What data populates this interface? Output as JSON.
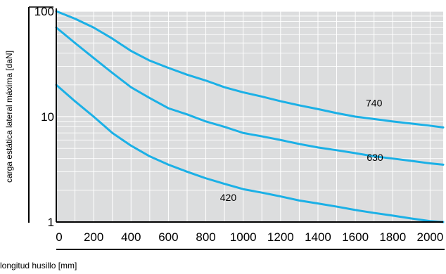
{
  "chart_data": {
    "type": "line",
    "title": "",
    "xlabel": "longitud husillo [mm]",
    "ylabel": "carga estática lateral máxima [daN]",
    "xlim": [
      0,
      2070
    ],
    "ylim": [
      1,
      100
    ],
    "y_scale": "log",
    "grid": true,
    "x_ticks": [
      0,
      200,
      400,
      600,
      800,
      1000,
      1200,
      1400,
      1600,
      1800,
      2000
    ],
    "x_tick_labels": [
      "0",
      "200",
      "400",
      "600",
      "800",
      "1000",
      "1200",
      "1400",
      "1600",
      "1800",
      "2000"
    ],
    "y_ticks": [
      1,
      10,
      100
    ],
    "y_tick_labels": [
      "1",
      "10",
      "100"
    ],
    "line_color": "#1BB0E6",
    "grid_color": "#FFFFFF",
    "background_color": "#DCDDDE",
    "series": [
      {
        "name": "740",
        "x": [
          0,
          100,
          200,
          300,
          400,
          500,
          600,
          700,
          800,
          900,
          1000,
          1100,
          1200,
          1300,
          1400,
          1500,
          1600,
          1700,
          1800,
          1900,
          2000,
          2070
        ],
        "y": [
          100,
          85,
          70,
          55,
          42,
          34,
          29,
          25,
          22,
          19,
          17,
          15.5,
          14,
          12.8,
          11.8,
          10.8,
          10,
          9.5,
          9,
          8.6,
          8.2,
          7.9
        ]
      },
      {
        "name": "630",
        "x": [
          0,
          100,
          200,
          300,
          400,
          500,
          600,
          700,
          800,
          900,
          1000,
          1100,
          1200,
          1300,
          1400,
          1500,
          1600,
          1700,
          1800,
          1900,
          2000,
          2070
        ],
        "y": [
          70,
          50,
          36,
          26,
          19,
          15,
          12,
          10.5,
          9,
          8,
          7,
          6.5,
          6,
          5.5,
          5.1,
          4.8,
          4.5,
          4.2,
          4,
          3.8,
          3.6,
          3.5
        ]
      },
      {
        "name": "420",
        "x": [
          0,
          100,
          200,
          300,
          400,
          500,
          600,
          700,
          800,
          900,
          1000,
          1100,
          1200,
          1300,
          1400,
          1500,
          1600,
          1700,
          1800,
          1900,
          2000,
          2070
        ],
        "y": [
          20,
          14,
          10,
          7,
          5.3,
          4.2,
          3.5,
          3,
          2.6,
          2.3,
          2.05,
          1.9,
          1.75,
          1.6,
          1.5,
          1.4,
          1.3,
          1.22,
          1.15,
          1.08,
          1.02,
          1
        ]
      }
    ]
  }
}
